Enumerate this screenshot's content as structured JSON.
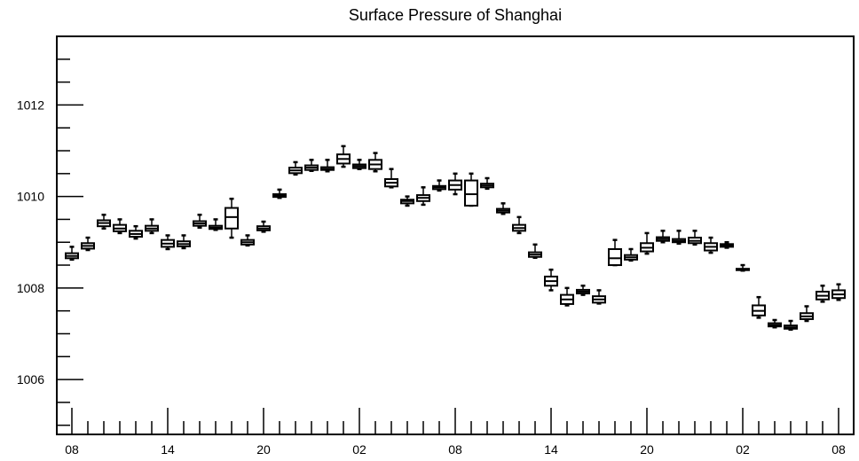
{
  "chart_data": {
    "type": "box",
    "title": "Surface Pressure of Shanghai",
    "xlabel": "",
    "ylabel": "",
    "ylim": [
      1004.8,
      1013.5
    ],
    "yticks": [
      1006,
      1008,
      1010,
      1012
    ],
    "y_minor_step": 0.5,
    "x_tick_labels": [
      "08",
      "14",
      "20",
      "02",
      "08",
      "14",
      "20",
      "02",
      "08"
    ],
    "x_tick_hours": [
      0,
      6,
      12,
      18,
      24,
      30,
      36,
      42,
      48
    ],
    "x_unit": "hour index (1 box per hour)",
    "grid": false,
    "boxes": [
      {
        "x": 0,
        "min": 1008.62,
        "q1": 1008.65,
        "median": 1008.7,
        "q3": 1008.76,
        "max": 1008.9
      },
      {
        "x": 1,
        "min": 1008.83,
        "q1": 1008.86,
        "median": 1008.92,
        "q3": 1008.98,
        "max": 1009.1
      },
      {
        "x": 2,
        "min": 1009.3,
        "q1": 1009.35,
        "median": 1009.42,
        "q3": 1009.48,
        "max": 1009.6
      },
      {
        "x": 3,
        "min": 1009.2,
        "q1": 1009.24,
        "median": 1009.3,
        "q3": 1009.38,
        "max": 1009.5
      },
      {
        "x": 4,
        "min": 1009.08,
        "q1": 1009.12,
        "median": 1009.18,
        "q3": 1009.25,
        "max": 1009.35
      },
      {
        "x": 5,
        "min": 1009.2,
        "q1": 1009.25,
        "median": 1009.3,
        "q3": 1009.36,
        "max": 1009.5
      },
      {
        "x": 6,
        "min": 1008.85,
        "q1": 1008.9,
        "median": 1008.97,
        "q3": 1009.05,
        "max": 1009.15
      },
      {
        "x": 7,
        "min": 1008.87,
        "q1": 1008.91,
        "median": 1008.96,
        "q3": 1009.02,
        "max": 1009.15
      },
      {
        "x": 8,
        "min": 1009.32,
        "q1": 1009.36,
        "median": 1009.41,
        "q3": 1009.46,
        "max": 1009.6
      },
      {
        "x": 9,
        "min": 1009.27,
        "q1": 1009.29,
        "median": 1009.32,
        "q3": 1009.36,
        "max": 1009.5
      },
      {
        "x": 10,
        "min": 1009.1,
        "q1": 1009.3,
        "median": 1009.55,
        "q3": 1009.75,
        "max": 1009.95
      },
      {
        "x": 11,
        "min": 1008.93,
        "q1": 1008.95,
        "median": 1009.0,
        "q3": 1009.05,
        "max": 1009.15
      },
      {
        "x": 12,
        "min": 1009.23,
        "q1": 1009.26,
        "median": 1009.3,
        "q3": 1009.35,
        "max": 1009.45
      },
      {
        "x": 13,
        "min": 1009.97,
        "q1": 1009.99,
        "median": 1010.02,
        "q3": 1010.05,
        "max": 1010.15
      },
      {
        "x": 14,
        "min": 1010.48,
        "q1": 1010.51,
        "median": 1010.57,
        "q3": 1010.63,
        "max": 1010.75
      },
      {
        "x": 15,
        "min": 1010.56,
        "q1": 1010.58,
        "median": 1010.63,
        "q3": 1010.68,
        "max": 1010.8
      },
      {
        "x": 16,
        "min": 1010.55,
        "q1": 1010.58,
        "median": 1010.6,
        "q3": 1010.64,
        "max": 1010.8
      },
      {
        "x": 17,
        "min": 1010.65,
        "q1": 1010.72,
        "median": 1010.82,
        "q3": 1010.92,
        "max": 1011.1
      },
      {
        "x": 18,
        "min": 1010.6,
        "q1": 1010.62,
        "median": 1010.66,
        "q3": 1010.7,
        "max": 1010.8
      },
      {
        "x": 19,
        "min": 1010.55,
        "q1": 1010.6,
        "median": 1010.7,
        "q3": 1010.8,
        "max": 1010.95
      },
      {
        "x": 20,
        "min": 1010.2,
        "q1": 1010.22,
        "median": 1010.3,
        "q3": 1010.38,
        "max": 1010.6
      },
      {
        "x": 21,
        "min": 1009.8,
        "q1": 1009.85,
        "median": 1009.9,
        "q3": 1009.93,
        "max": 1010.0
      },
      {
        "x": 22,
        "min": 1009.82,
        "q1": 1009.9,
        "median": 1009.97,
        "q3": 1010.03,
        "max": 1010.2
      },
      {
        "x": 23,
        "min": 1010.13,
        "q1": 1010.16,
        "median": 1010.2,
        "q3": 1010.23,
        "max": 1010.35
      },
      {
        "x": 24,
        "min": 1010.05,
        "q1": 1010.15,
        "median": 1010.25,
        "q3": 1010.35,
        "max": 1010.5
      },
      {
        "x": 25,
        "min": 1009.8,
        "q1": 1009.8,
        "median": 1010.05,
        "q3": 1010.35,
        "max": 1010.5
      },
      {
        "x": 26,
        "min": 1010.17,
        "q1": 1010.2,
        "median": 1010.24,
        "q3": 1010.28,
        "max": 1010.4
      },
      {
        "x": 27,
        "min": 1009.62,
        "q1": 1009.65,
        "median": 1009.69,
        "q3": 1009.73,
        "max": 1009.85
      },
      {
        "x": 28,
        "min": 1009.2,
        "q1": 1009.25,
        "median": 1009.31,
        "q3": 1009.38,
        "max": 1009.55
      },
      {
        "x": 29,
        "min": 1008.66,
        "q1": 1008.68,
        "median": 1008.73,
        "q3": 1008.78,
        "max": 1008.95
      },
      {
        "x": 30,
        "min": 1007.95,
        "q1": 1008.05,
        "median": 1008.15,
        "q3": 1008.25,
        "max": 1008.4
      },
      {
        "x": 31,
        "min": 1007.62,
        "q1": 1007.65,
        "median": 1007.75,
        "q3": 1007.85,
        "max": 1008.0
      },
      {
        "x": 32,
        "min": 1007.85,
        "q1": 1007.88,
        "median": 1007.92,
        "q3": 1007.96,
        "max": 1008.05
      },
      {
        "x": 33,
        "min": 1007.66,
        "q1": 1007.68,
        "median": 1007.75,
        "q3": 1007.82,
        "max": 1007.95
      },
      {
        "x": 34,
        "min": 1008.5,
        "q1": 1008.5,
        "median": 1008.65,
        "q3": 1008.85,
        "max": 1009.05
      },
      {
        "x": 35,
        "min": 1008.6,
        "q1": 1008.62,
        "median": 1008.67,
        "q3": 1008.72,
        "max": 1008.85
      },
      {
        "x": 36,
        "min": 1008.75,
        "q1": 1008.8,
        "median": 1008.88,
        "q3": 1008.98,
        "max": 1009.2
      },
      {
        "x": 37,
        "min": 1009.0,
        "q1": 1009.03,
        "median": 1009.07,
        "q3": 1009.11,
        "max": 1009.25
      },
      {
        "x": 38,
        "min": 1008.97,
        "q1": 1009.0,
        "median": 1009.03,
        "q3": 1009.07,
        "max": 1009.25
      },
      {
        "x": 39,
        "min": 1008.95,
        "q1": 1008.98,
        "median": 1009.03,
        "q3": 1009.1,
        "max": 1009.25
      },
      {
        "x": 40,
        "min": 1008.77,
        "q1": 1008.82,
        "median": 1008.9,
        "q3": 1008.98,
        "max": 1009.1
      },
      {
        "x": 41,
        "min": 1008.88,
        "q1": 1008.9,
        "median": 1008.93,
        "q3": 1008.96,
        "max": 1009.0
      },
      {
        "x": 42,
        "min": 1008.38,
        "q1": 1008.39,
        "median": 1008.4,
        "q3": 1008.42,
        "max": 1008.5
      },
      {
        "x": 43,
        "min": 1007.35,
        "q1": 1007.4,
        "median": 1007.5,
        "q3": 1007.62,
        "max": 1007.8
      },
      {
        "x": 44,
        "min": 1007.14,
        "q1": 1007.16,
        "median": 1007.19,
        "q3": 1007.23,
        "max": 1007.3
      },
      {
        "x": 45,
        "min": 1007.09,
        "q1": 1007.11,
        "median": 1007.14,
        "q3": 1007.18,
        "max": 1007.28
      },
      {
        "x": 46,
        "min": 1007.28,
        "q1": 1007.32,
        "median": 1007.38,
        "q3": 1007.45,
        "max": 1007.6
      },
      {
        "x": 47,
        "min": 1007.7,
        "q1": 1007.75,
        "median": 1007.83,
        "q3": 1007.92,
        "max": 1008.05
      },
      {
        "x": 48,
        "min": 1007.74,
        "q1": 1007.78,
        "median": 1007.86,
        "q3": 1007.95,
        "max": 1008.08
      }
    ]
  }
}
